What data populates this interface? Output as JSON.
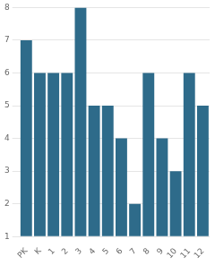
{
  "chart_data": {
    "type": "bar",
    "categories": [
      "PK",
      "K",
      "1",
      "2",
      "3",
      "4",
      "5",
      "6",
      "7",
      "8",
      "9",
      "10",
      "11",
      "12"
    ],
    "values": [
      7,
      6,
      6,
      6,
      8,
      5,
      5,
      4,
      2,
      6,
      4,
      3,
      6,
      5
    ],
    "color": "#2e6b8a",
    "ylim": [
      1,
      8
    ],
    "yticks": [
      1,
      2,
      3,
      4,
      5,
      6,
      7,
      8
    ],
    "grid": true
  }
}
